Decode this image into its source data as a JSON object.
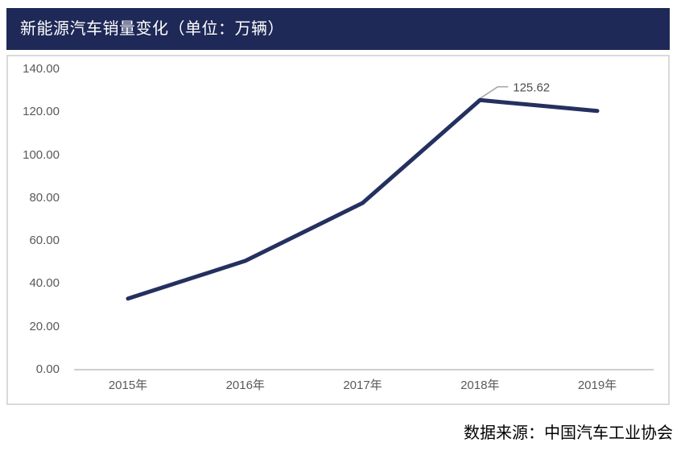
{
  "header": {
    "title": "新能源汽车销量变化（单位：万辆）"
  },
  "footer": {
    "source": "数据来源：中国汽车工业协会"
  },
  "chart_data": {
    "type": "line",
    "title": "新能源汽车销量变化（单位：万辆）",
    "unit": "万辆",
    "categories": [
      "2015年",
      "2016年",
      "2017年",
      "2018年",
      "2019年"
    ],
    "series": [
      {
        "name": "新能源汽车销量",
        "values": [
          33.11,
          50.7,
          77.7,
          125.62,
          120.6
        ]
      }
    ],
    "annotation": {
      "category": "2018年",
      "value": 125.62,
      "label": "125.62"
    },
    "xlabel": "",
    "ylabel": "",
    "ylim": [
      0,
      140
    ],
    "y_tick_step": 20,
    "y_ticks": [
      "0.00",
      "20.00",
      "40.00",
      "60.00",
      "80.00",
      "100.00",
      "120.00",
      "140.00"
    ],
    "grid": "off",
    "legend": "none",
    "colors": {
      "title_bar_bg": "#1F2957",
      "title_text": "#FFFFFF",
      "line": "#24305F",
      "axis_label": "#595959",
      "frame_border": "#D9D9D9",
      "axis_line": "#CFCDCD",
      "annotation_text": "#4D4D4D",
      "leader_line": "#A6A6A6"
    }
  }
}
